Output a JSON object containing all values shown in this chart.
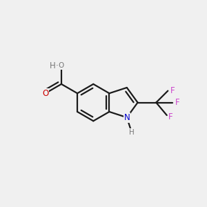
{
  "bg_color": "#f0f0f0",
  "bond_color": "#1a1a1a",
  "bond_width": 1.6,
  "O_color": "#cc0000",
  "N_color": "#0000cc",
  "F_color": "#cc44cc",
  "H_color": "#777777",
  "figsize": [
    3.0,
    3.0
  ],
  "dpi": 100,
  "xlim": [
    0.0,
    1.0
  ],
  "ylim": [
    0.1,
    0.9
  ]
}
